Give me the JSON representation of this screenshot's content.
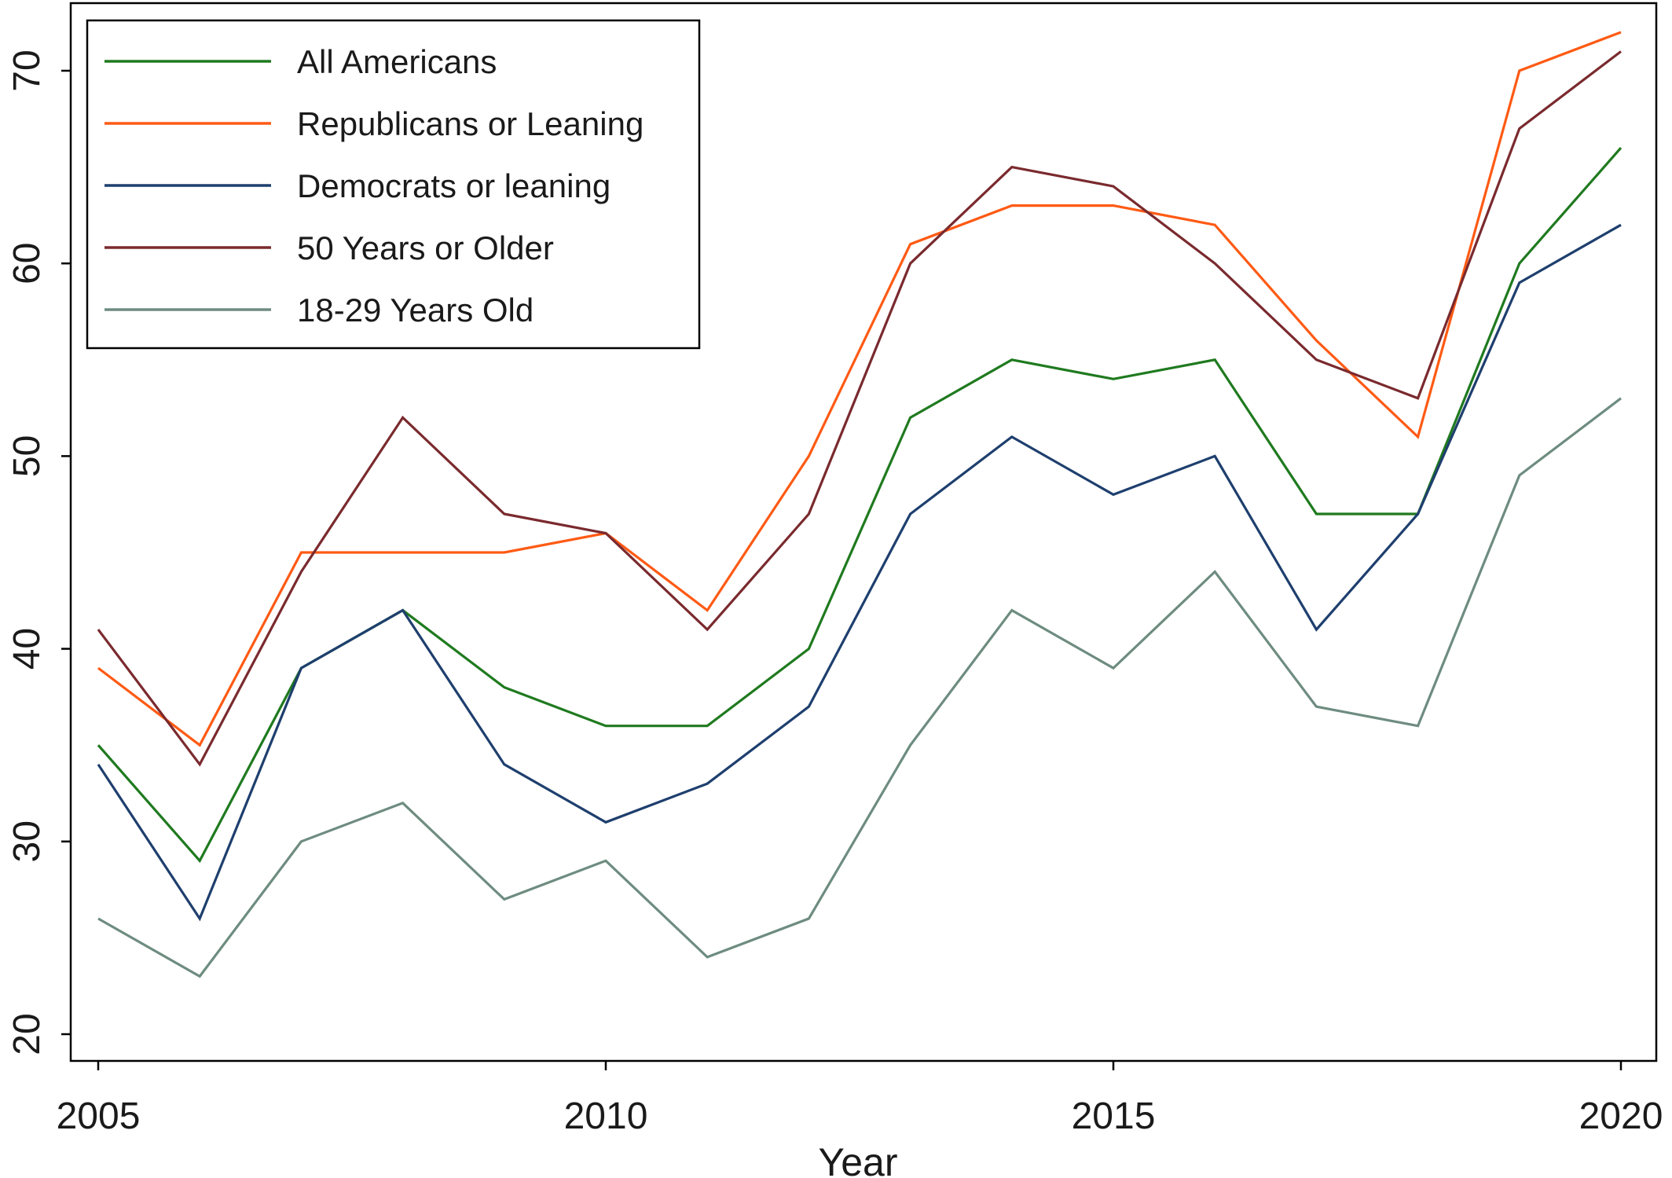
{
  "chart_data": {
    "type": "line",
    "xlabel": "Year",
    "ylabel": "",
    "xlim": [
      2005,
      2020
    ],
    "ylim": [
      20,
      72
    ],
    "x_ticks": [
      2005,
      2010,
      2015,
      2020
    ],
    "y_ticks": [
      20,
      30,
      40,
      50,
      60,
      70
    ],
    "grid": false,
    "legend_position": "top-left",
    "x": [
      2005,
      2006,
      2007,
      2008,
      2009,
      2010,
      2011,
      2012,
      2013,
      2014,
      2015,
      2016,
      2017,
      2018,
      2019,
      2020
    ],
    "series": [
      {
        "name": "All Americans",
        "color": "#1f7a1f",
        "values": [
          35,
          29,
          39,
          42,
          38,
          36,
          36,
          40,
          52,
          55,
          54,
          55,
          47,
          47,
          60,
          66
        ]
      },
      {
        "name": "Republicans or Leaning",
        "color": "#ff5a14",
        "values": [
          39,
          35,
          45,
          45,
          45,
          46,
          42,
          50,
          61,
          63,
          63,
          62,
          56,
          51,
          70,
          72
        ]
      },
      {
        "name": "Democrats or leaning",
        "color": "#1e3f6e",
        "values": [
          34,
          26,
          39,
          42,
          34,
          31,
          33,
          37,
          47,
          51,
          48,
          50,
          41,
          47,
          59,
          62
        ]
      },
      {
        "name": "50 Years or Older",
        "color": "#7a2a2e",
        "values": [
          41,
          34,
          44,
          52,
          47,
          46,
          41,
          47,
          60,
          65,
          64,
          60,
          55,
          53,
          67,
          71
        ]
      },
      {
        "name": "18-29 Years Old",
        "color": "#6e8c80",
        "values": [
          26,
          23,
          30,
          32,
          27,
          29,
          24,
          26,
          35,
          42,
          39,
          44,
          37,
          36,
          49,
          53
        ]
      }
    ]
  }
}
